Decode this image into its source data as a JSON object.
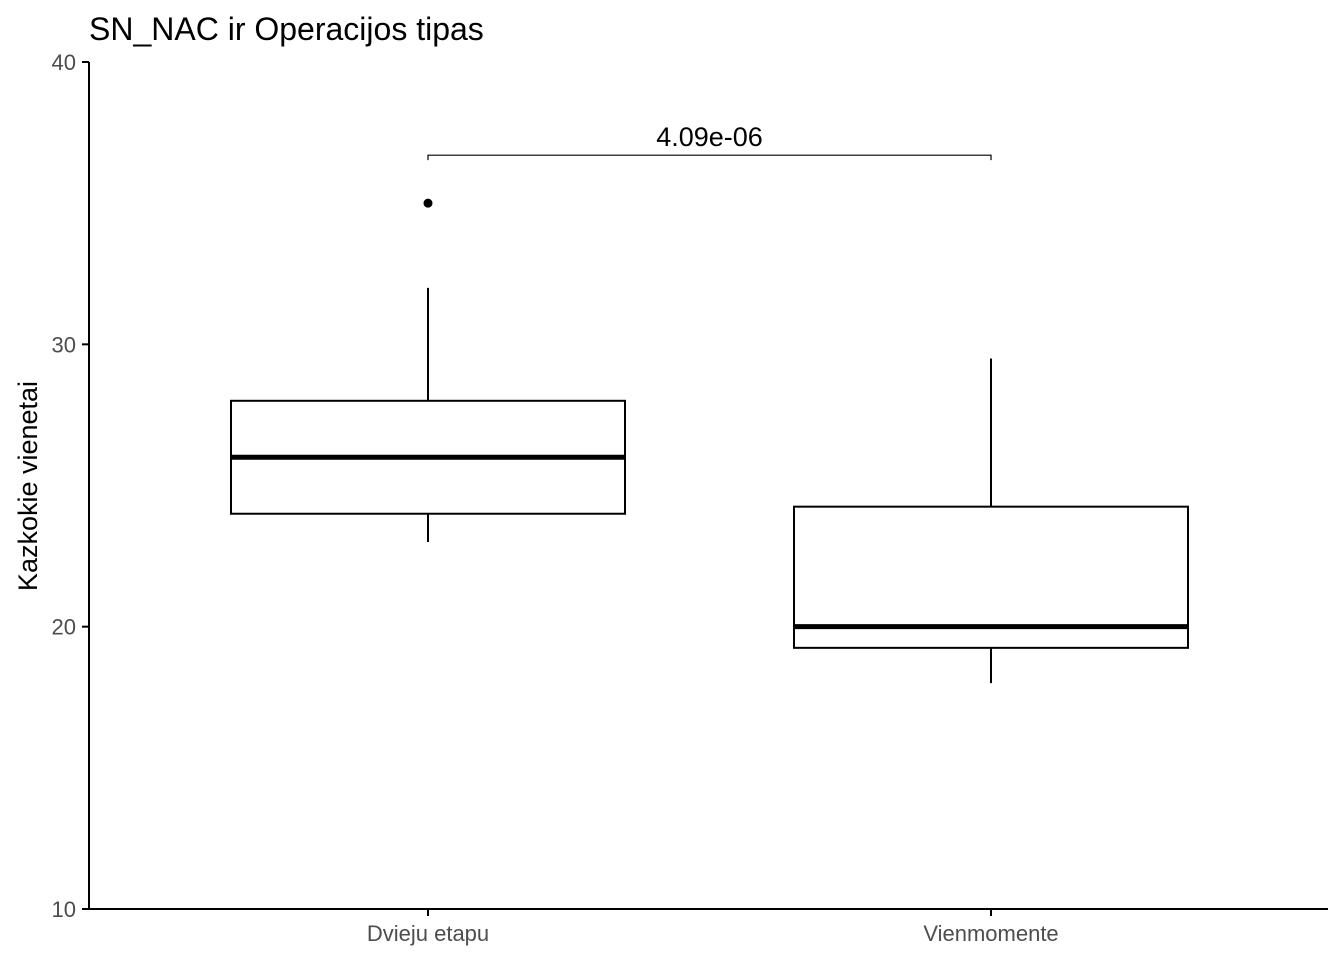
{
  "chart_data": {
    "type": "box",
    "title": "SN_NAC ir Operacijos tipas",
    "xlabel": "",
    "ylabel": "Kazkokie vienetai",
    "categories": [
      "Dvieju etapu",
      "Vienmomente"
    ],
    "ylim": [
      10,
      40
    ],
    "yticks": [
      10,
      20,
      30,
      40
    ],
    "grid": false,
    "legend": "none",
    "boxes": [
      {
        "category": "Dvieju etapu",
        "whisker_low": 23,
        "q1": 24,
        "median": 26,
        "q3": 28,
        "whisker_high": 32,
        "outliers": [
          35
        ]
      },
      {
        "category": "Vienmomente",
        "whisker_low": 18,
        "q1": 19.25,
        "median": 20,
        "q3": 24.25,
        "whisker_high": 29.5,
        "outliers": []
      }
    ],
    "comparisons": [
      {
        "from": "Dvieju etapu",
        "to": "Vienmomente",
        "label": "4.09e-06",
        "y": 36.7
      }
    ],
    "colors": {
      "box_fill": "#ffffff",
      "box_line": "#000000",
      "axis": "#000000",
      "tick_label": "#4d4d4d"
    }
  }
}
